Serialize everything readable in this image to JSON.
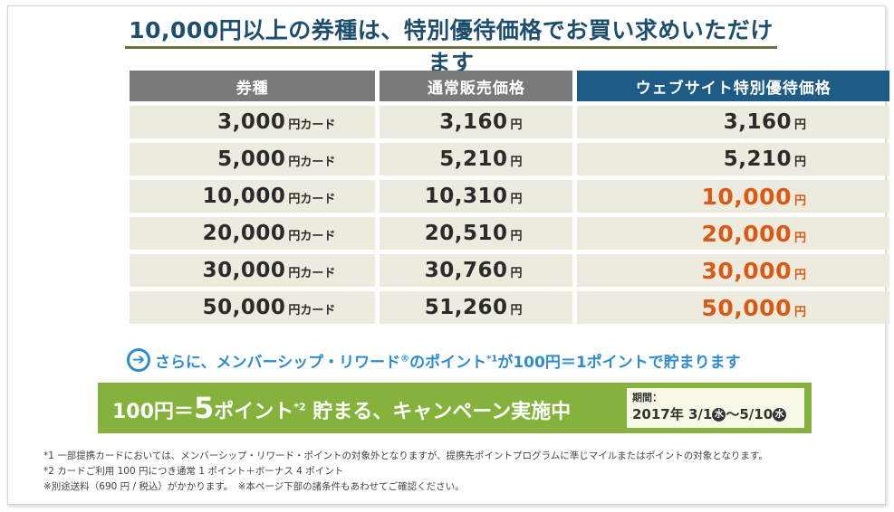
{
  "headline": "10,000円以上の券種は、特別優待価格でお買い求めいただけます",
  "table": {
    "headers": {
      "type": "券種",
      "regular": "通常販売価格",
      "special": "ウェブサイト特別優待価格"
    },
    "unit_yen": "円",
    "unit_card": "円カード",
    "rows": [
      {
        "card": "3,000",
        "regular": "3,160",
        "special": "3,160"
      },
      {
        "card": "5,000",
        "regular": "5,210",
        "special": "5,210"
      },
      {
        "card": "10,000",
        "regular": "10,310",
        "special": "10,000"
      },
      {
        "card": "20,000",
        "regular": "20,510",
        "special": "20,000"
      },
      {
        "card": "30,000",
        "regular": "30,760",
        "special": "30,000"
      },
      {
        "card": "50,000",
        "regular": "51,260",
        "special": "50,000"
      }
    ]
  },
  "reward": {
    "prefix": "さらに、メンバーシップ・リワード",
    "reg_mark": "®",
    "middle": "のポイント",
    "footnote_mark": "*1",
    "suffix": "が100円＝1ポイントで貯まります"
  },
  "campaign": {
    "part1": "100円＝",
    "big_number": "5",
    "part2": "ポイント",
    "footnote_mark": "*2",
    "part3": " 貯まる、キャンペーン実施中",
    "period_label": "期間：",
    "period_year": "2017年",
    "period_start": "3/1",
    "period_sep": "～",
    "period_end": "5/10",
    "weekday": "水"
  },
  "notes": [
    "*1 一部提携カードにおいては、メンバーシップ・リワード・ポイントの対象外となりますが、提携先ポイントプログラムに準じマイルまたはポイントの対象となります。",
    "*2 カードご利用 100 円につき通常 1 ポイント＋ボーナス 4 ポイント",
    "※別途送料（690 円 / 税込）がかかります。　※本ページ下部の諸条件もあわせてご確認ください。"
  ],
  "colors": {
    "headline": "#1e4e6e",
    "header_gray": "#7a7a7a",
    "header_blue": "#1e5c86",
    "row_bg": "#ecebdd",
    "highlight": "#d85a16",
    "reward_blue": "#2f8ccc",
    "campaign_green": "#84b23c"
  },
  "icons": {
    "reward_arrow": "arrow-right-circle-icon"
  }
}
